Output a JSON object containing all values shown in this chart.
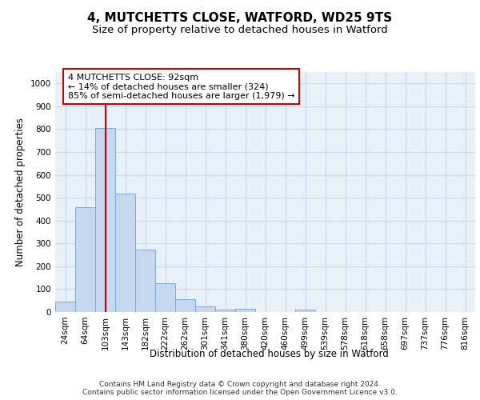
{
  "title_line1": "4, MUTCHETTS CLOSE, WATFORD, WD25 9TS",
  "title_line2": "Size of property relative to detached houses in Watford",
  "xlabel": "Distribution of detached houses by size in Watford",
  "ylabel": "Number of detached properties",
  "categories": [
    "24sqm",
    "64sqm",
    "103sqm",
    "143sqm",
    "182sqm",
    "222sqm",
    "262sqm",
    "301sqm",
    "341sqm",
    "380sqm",
    "420sqm",
    "460sqm",
    "499sqm",
    "539sqm",
    "578sqm",
    "618sqm",
    "658sqm",
    "697sqm",
    "737sqm",
    "776sqm",
    "816sqm"
  ],
  "values": [
    46,
    460,
    805,
    518,
    272,
    125,
    55,
    25,
    12,
    13,
    0,
    0,
    10,
    0,
    0,
    0,
    0,
    0,
    0,
    0,
    0
  ],
  "bar_color": "#c5d8f0",
  "bar_edge_color": "#7aadd4",
  "vline_color": "#cc0000",
  "vline_x": 2.5,
  "annotation_text": "4 MUTCHETTS CLOSE: 92sqm\n← 14% of detached houses are smaller (324)\n85% of semi-detached houses are larger (1,979) →",
  "annotation_box_color": "#ffffff",
  "annotation_box_edge_color": "#cc0000",
  "ylim": [
    0,
    1050
  ],
  "yticks": [
    0,
    100,
    200,
    300,
    400,
    500,
    600,
    700,
    800,
    900,
    1000
  ],
  "grid_color": "#c8d8e8",
  "bg_color": "#e8f0f8",
  "footnote": "Contains HM Land Registry data © Crown copyright and database right 2024.\nContains public sector information licensed under the Open Government Licence v3.0.",
  "title_fontsize": 11,
  "subtitle_fontsize": 9.5,
  "label_fontsize": 8.5,
  "tick_fontsize": 7.5,
  "footnote_fontsize": 6.5
}
